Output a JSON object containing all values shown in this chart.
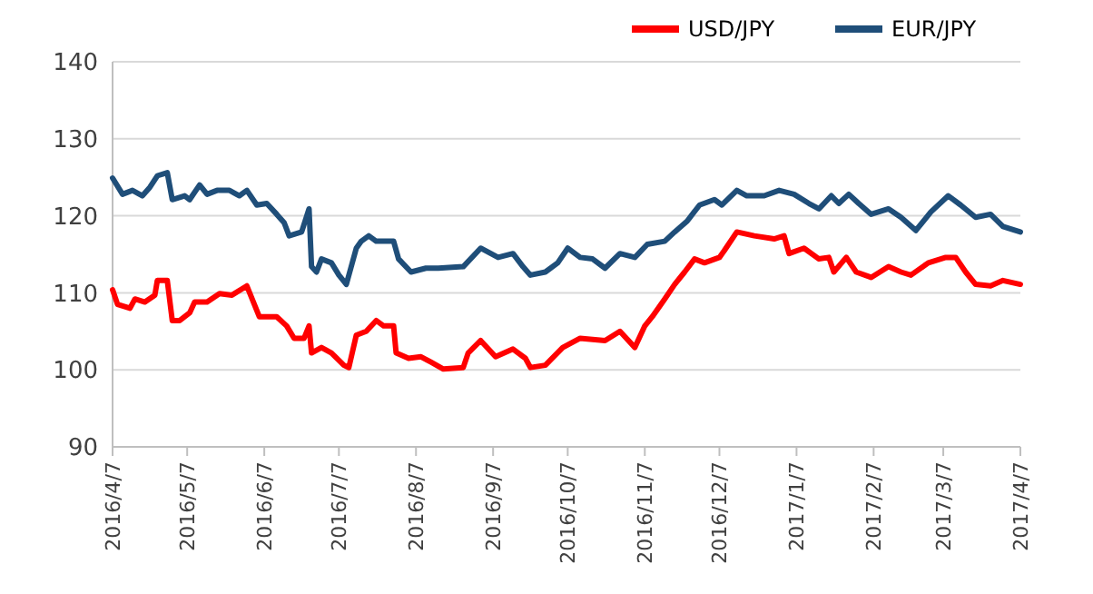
{
  "chart_data": {
    "type": "line",
    "ylim": [
      90,
      140
    ],
    "yticks": [
      90,
      100,
      110,
      120,
      130,
      140
    ],
    "xlim": [
      "2016-04-07",
      "2017-04-07"
    ],
    "xticks": [
      {
        "value": "2016-04-07",
        "label": "2016/4/7"
      },
      {
        "value": "2016-05-07",
        "label": "2016/5/7"
      },
      {
        "value": "2016-06-07",
        "label": "2016/6/7"
      },
      {
        "value": "2016-07-07",
        "label": "2016/7/7"
      },
      {
        "value": "2016-08-07",
        "label": "2016/8/7"
      },
      {
        "value": "2016-09-07",
        "label": "2016/9/7"
      },
      {
        "value": "2016-10-07",
        "label": "2016/10/7"
      },
      {
        "value": "2016-11-07",
        "label": "2016/11/7"
      },
      {
        "value": "2016-12-07",
        "label": "2016/12/7"
      },
      {
        "value": "2017-01-07",
        "label": "2017/1/7"
      },
      {
        "value": "2017-02-07",
        "label": "2017/2/7"
      },
      {
        "value": "2017-03-07",
        "label": "2017/3/7"
      },
      {
        "value": "2017-04-07",
        "label": "2017/4/7"
      }
    ],
    "grid": "y",
    "legend": "top right",
    "marker": "none",
    "line_style": "solid",
    "series": [
      {
        "name": "USD/JPY",
        "color": "#ff0000",
        "x": [
          "2016-04-07",
          "2016-04-09",
          "2016-04-14",
          "2016-04-16",
          "2016-04-20",
          "2016-04-24",
          "2016-04-25",
          "2016-04-29",
          "2016-05-01",
          "2016-05-04",
          "2016-05-08",
          "2016-05-10",
          "2016-05-15",
          "2016-05-20",
          "2016-05-25",
          "2016-05-31",
          "2016-06-05",
          "2016-06-12",
          "2016-06-16",
          "2016-06-19",
          "2016-06-23",
          "2016-06-25",
          "2016-06-26",
          "2016-06-30",
          "2016-07-04",
          "2016-07-09",
          "2016-07-11",
          "2016-07-14",
          "2016-07-18",
          "2016-07-22",
          "2016-07-25",
          "2016-07-29",
          "2016-07-30",
          "2016-08-04",
          "2016-08-09",
          "2016-08-13",
          "2016-08-18",
          "2016-08-26",
          "2016-08-28",
          "2016-09-02",
          "2016-09-08",
          "2016-09-15",
          "2016-09-20",
          "2016-09-22",
          "2016-09-28",
          "2016-10-05",
          "2016-10-12",
          "2016-10-22",
          "2016-10-28",
          "2016-11-03",
          "2016-11-07",
          "2016-11-10",
          "2016-11-15",
          "2016-11-19",
          "2016-11-23",
          "2016-11-27",
          "2016-12-01",
          "2016-12-07",
          "2016-12-09",
          "2016-12-14",
          "2016-12-21",
          "2016-12-29",
          "2017-01-02",
          "2017-01-04",
          "2017-01-10",
          "2017-01-16",
          "2017-01-20",
          "2017-01-22",
          "2017-01-27",
          "2017-01-31",
          "2017-02-06",
          "2017-02-13",
          "2017-02-18",
          "2017-02-22",
          "2017-03-01",
          "2017-03-08",
          "2017-03-12",
          "2017-03-16",
          "2017-03-20",
          "2017-03-26",
          "2017-03-31",
          "2017-04-07"
        ],
        "values": [
          110.4,
          108.5,
          108.0,
          109.2,
          108.8,
          109.7,
          111.6,
          111.6,
          106.4,
          106.4,
          107.4,
          108.8,
          108.8,
          109.9,
          109.7,
          110.9,
          106.9,
          106.9,
          105.7,
          104.1,
          104.1,
          105.7,
          102.2,
          102.9,
          102.2,
          100.6,
          100.3,
          104.5,
          105.0,
          106.4,
          105.7,
          105.7,
          102.2,
          101.5,
          101.7,
          101.0,
          100.1,
          100.3,
          102.2,
          103.8,
          101.7,
          102.7,
          101.5,
          100.3,
          100.6,
          102.9,
          104.1,
          103.8,
          105.0,
          102.9,
          105.7,
          106.9,
          109.2,
          111.1,
          112.7,
          114.4,
          113.9,
          114.6,
          115.5,
          117.9,
          117.4,
          117.0,
          117.4,
          115.1,
          115.8,
          114.4,
          114.6,
          112.7,
          114.6,
          112.7,
          112.0,
          113.4,
          112.7,
          112.3,
          113.9,
          114.6,
          114.6,
          112.7,
          111.1,
          110.9,
          111.6,
          111.1
        ]
      },
      {
        "name": "EUR/JPY",
        "color": "#1f4e79",
        "x": [
          "2016-04-07",
          "2016-04-11",
          "2016-04-15",
          "2016-04-19",
          "2016-04-22",
          "2016-04-25",
          "2016-04-29",
          "2016-05-01",
          "2016-05-06",
          "2016-05-08",
          "2016-05-12",
          "2016-05-15",
          "2016-05-19",
          "2016-05-24",
          "2016-05-28",
          "2016-05-31",
          "2016-06-04",
          "2016-06-08",
          "2016-06-12",
          "2016-06-15",
          "2016-06-17",
          "2016-06-22",
          "2016-06-25",
          "2016-06-26",
          "2016-06-28",
          "2016-06-30",
          "2016-07-04",
          "2016-07-07",
          "2016-07-10",
          "2016-07-14",
          "2016-07-16",
          "2016-07-19",
          "2016-07-22",
          "2016-07-25",
          "2016-07-29",
          "2016-07-31",
          "2016-08-05",
          "2016-08-11",
          "2016-08-16",
          "2016-08-26",
          "2016-09-02",
          "2016-09-09",
          "2016-09-15",
          "2016-09-19",
          "2016-09-22",
          "2016-09-28",
          "2016-10-03",
          "2016-10-07",
          "2016-10-12",
          "2016-10-17",
          "2016-10-22",
          "2016-10-28",
          "2016-11-03",
          "2016-11-08",
          "2016-11-15",
          "2016-11-19",
          "2016-11-24",
          "2016-11-29",
          "2016-12-05",
          "2016-12-08",
          "2016-12-14",
          "2016-12-18",
          "2016-12-25",
          "2016-12-31",
          "2017-01-06",
          "2017-01-12",
          "2017-01-16",
          "2017-01-21",
          "2017-01-24",
          "2017-01-28",
          "2017-02-01",
          "2017-02-06",
          "2017-02-13",
          "2017-02-18",
          "2017-02-24",
          "2017-03-02",
          "2017-03-09",
          "2017-03-14",
          "2017-03-20",
          "2017-03-26",
          "2017-03-31",
          "2017-04-07"
        ],
        "values": [
          124.9,
          122.8,
          123.3,
          122.6,
          123.7,
          125.2,
          125.6,
          122.1,
          122.6,
          122.1,
          124.0,
          122.8,
          123.3,
          123.3,
          122.6,
          123.3,
          121.4,
          121.6,
          120.2,
          119.1,
          117.4,
          117.9,
          120.9,
          113.4,
          112.7,
          114.4,
          113.9,
          112.3,
          111.1,
          115.8,
          116.7,
          117.4,
          116.7,
          116.7,
          116.7,
          114.4,
          112.7,
          113.2,
          113.2,
          113.4,
          115.8,
          114.6,
          115.1,
          113.4,
          112.3,
          112.7,
          113.9,
          115.8,
          114.6,
          114.4,
          113.2,
          115.1,
          114.6,
          116.3,
          116.7,
          117.9,
          119.3,
          121.4,
          122.1,
          121.4,
          123.3,
          122.6,
          122.6,
          123.3,
          122.8,
          121.6,
          120.9,
          122.6,
          121.6,
          122.8,
          121.6,
          120.2,
          120.9,
          119.8,
          118.1,
          120.5,
          122.6,
          121.4,
          119.8,
          120.2,
          118.6,
          117.9
        ]
      }
    ]
  }
}
